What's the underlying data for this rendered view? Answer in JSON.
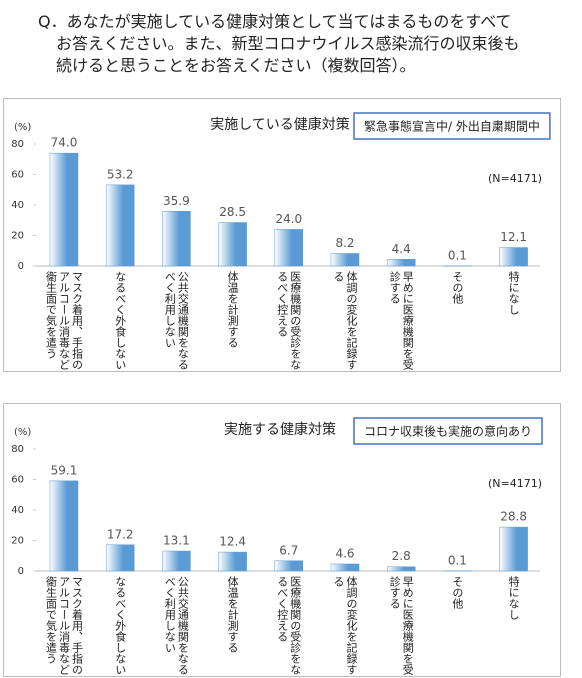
{
  "question": [
    "Q．あなたが実施している健康対策として当てはまるものをすべて",
    "お答えください。また、新型コロナウイルス感染流行の収束後も",
    "続けると思うことをお答えください（複数回答）。"
  ],
  "chart_data": [
    {
      "type": "bar",
      "title": "実施している健康対策",
      "subtitle": "緊急事態宣言中/ 外出自粛期間中",
      "y_label": "(%)",
      "annotation": "(N=4171)",
      "categories": [
        "マスク着用、手指のアルコール消毒など衛生面で気を遣う",
        "なるべく外食しない",
        "公共交通機関をなるべく利用しない",
        "体温を計測する",
        "医療機関の受診をなるべく控える",
        "体調の変化を記録する",
        "早めに医療機関を受診する",
        "その他",
        "特になし"
      ],
      "values": [
        74.0,
        53.2,
        35.9,
        28.5,
        24.0,
        8.2,
        4.4,
        0.1,
        12.1
      ],
      "value_labels": [
        "74.0",
        "53.2",
        "35.9",
        "28.5",
        "24.0",
        "8.2",
        "4.4",
        "0.1",
        "12.1"
      ],
      "color": "#5b9bd5",
      "ylim": [
        0,
        80
      ],
      "yticks": [
        0,
        20,
        40,
        60,
        80
      ]
    },
    {
      "type": "bar",
      "title": "実施する健康対策",
      "subtitle": "コロナ収束後も実施の意向あり",
      "y_label": "(%)",
      "annotation": "(N=4171)",
      "categories": [
        "マスク着用、手指のアルコール消毒など衛生面で気を遣う",
        "なるべく外食しない",
        "公共交通機関をなるべく利用しない",
        "体温を計測する",
        "医療機関の受診をなるべく控える",
        "体調の変化を記録する",
        "早めに医療機関を受診する",
        "その他",
        "特になし"
      ],
      "values": [
        59.1,
        17.2,
        13.1,
        12.4,
        6.7,
        4.6,
        2.8,
        0.1,
        28.8
      ],
      "value_labels": [
        "59.1",
        "17.2",
        "13.1",
        "12.4",
        "6.7",
        "4.6",
        "2.8",
        "0.1",
        "28.8"
      ],
      "color": "#5b9bd5",
      "ylim": [
        0,
        80
      ],
      "yticks": [
        0,
        20,
        40,
        60,
        80
      ]
    }
  ]
}
